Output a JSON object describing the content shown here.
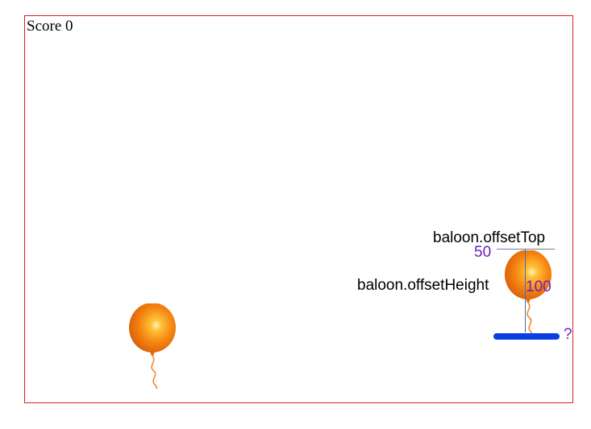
{
  "game": {
    "score_text": "Score 0",
    "balloon_color": "#f57f0c"
  },
  "annotations": {
    "offset_top_label": "baloon.offsetTop",
    "offset_top_value": "50",
    "offset_height_label": "baloon.offsetHeight",
    "offset_height_value": "100",
    "platform_question": "?"
  },
  "colors": {
    "border": "#d92020",
    "annotation_number": "#6a1fc2",
    "platform": "#0a3fe6"
  }
}
